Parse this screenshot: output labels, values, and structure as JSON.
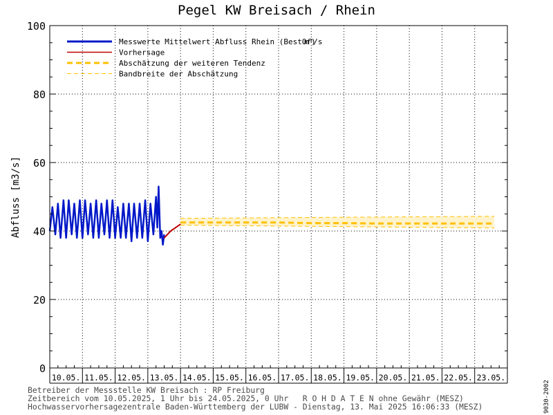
{
  "chart_data": {
    "type": "line",
    "title": "Pegel KW Breisach / Rhein",
    "ylabel": "Abfluss [m3/s]",
    "xlabel": "",
    "ylim": [
      0,
      100
    ],
    "yticks": [
      0,
      20,
      40,
      60,
      80,
      100
    ],
    "grid": true,
    "legend_position": "top-left",
    "categories": [
      "10.05.",
      "11.05.",
      "12.05.",
      "13.05.",
      "14.05.",
      "15.05.",
      "16.05.",
      "17.05.",
      "18.05.",
      "19.05.",
      "20.05.",
      "21.05.",
      "22.05.",
      "23.05."
    ],
    "series": [
      {
        "name": "Messwerte Mittelwert Abfluss Rhein (BestOf)",
        "unit": "m³/s",
        "color": "#0018c8",
        "style": "solid",
        "x": [
          0.0,
          0.08,
          0.17,
          0.25,
          0.33,
          0.42,
          0.5,
          0.58,
          0.67,
          0.75,
          0.83,
          0.92,
          1.0,
          1.08,
          1.17,
          1.25,
          1.33,
          1.42,
          1.5,
          1.58,
          1.67,
          1.75,
          1.83,
          1.92,
          2.0,
          2.08,
          2.17,
          2.25,
          2.33,
          2.42,
          2.5,
          2.58,
          2.67,
          2.75,
          2.83,
          2.92,
          3.0,
          3.08,
          3.17,
          3.25,
          3.29,
          3.33,
          3.38,
          3.42,
          3.46,
          3.5
        ],
        "y": [
          40,
          47,
          39,
          48,
          38,
          49,
          38,
          49,
          39,
          48,
          38,
          49,
          38,
          49,
          39,
          48,
          38,
          49,
          38,
          48,
          39,
          49,
          38,
          49,
          38,
          47,
          38,
          48,
          38,
          48,
          37,
          48,
          38,
          48,
          38,
          49,
          37,
          48,
          39,
          50,
          41,
          53,
          38,
          40,
          36,
          39
        ]
      },
      {
        "name": "Vorhersage",
        "color": "#c00000",
        "style": "solid",
        "x": [
          3.5,
          3.7,
          3.85,
          4.0
        ],
        "y": [
          38,
          40,
          41,
          42
        ]
      },
      {
        "name": "Abschätzung der weiteren Tendenz",
        "color": "#ffc000",
        "style": "dashed-thick",
        "x": [
          4.0,
          5.0,
          6.0,
          7.0,
          8.0,
          9.0,
          10.0,
          11.0,
          12.0,
          13.0,
          13.6
        ],
        "y": [
          42.5,
          42.5,
          42.5,
          42.5,
          42.3,
          42.3,
          42.2,
          42.2,
          42.2,
          42.2,
          42.2
        ]
      },
      {
        "name": "Bandbreite der Abschätzung",
        "color": "#ffc000",
        "style": "dashed-thin",
        "upper_x": [
          4.0,
          13.6
        ],
        "upper_y": [
          43.7,
          44.3
        ],
        "lower_x": [
          4.0,
          13.6
        ],
        "lower_y": [
          41.7,
          40.9
        ]
      }
    ]
  },
  "footer": {
    "line1": "Betreiber der Messstelle KW Breisach : RP Freiburg",
    "line2": "Zeitbereich vom 10.05.2025, 1 Uhr bis 24.05.2025, 0 Uhr   R O H D A T E N ohne Gewähr (MESZ)",
    "line3": "Hochwasservorhersagezentrale Baden-Württemberg der LUBW - Dienstag, 13. Mai 2025 16:06:33 (MESZ)"
  },
  "side_code": "9030-2002"
}
